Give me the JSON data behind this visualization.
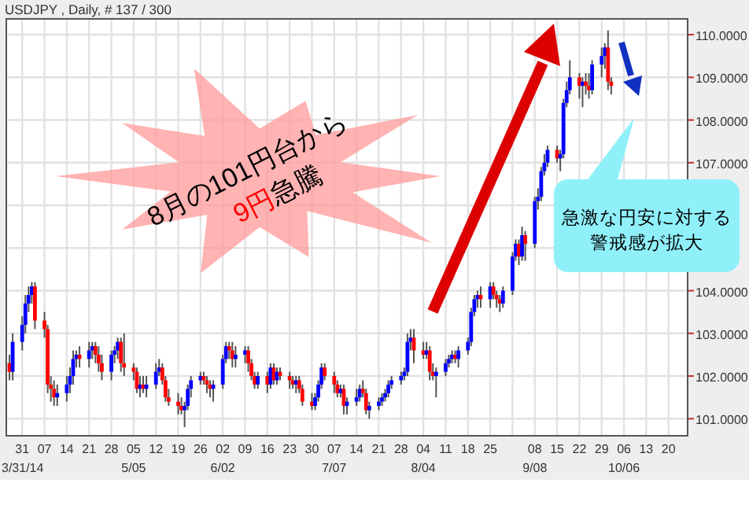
{
  "chart_data": {
    "type": "candlestick",
    "title": "USDJPY , Daily, # 137 / 300",
    "annotations": [
      "8月の101円台から",
      "9円",
      "急騰",
      "急激な円安に対する",
      "警戒感が拡大"
    ],
    "xlim": [
      "--03-26",
      "--10-26"
    ],
    "ylim": [
      100.6,
      110.37
    ],
    "yticks": [
      {
        "value": 101,
        "label": "101.0000"
      },
      {
        "value": 102,
        "label": "102.0000"
      },
      {
        "value": 103,
        "label": "103.0000"
      },
      {
        "value": 104,
        "label": "104.0000"
      },
      {
        "value": 105,
        "label": null
      },
      {
        "value": 106,
        "label": null
      },
      {
        "value": 107,
        "label": "107.0000"
      },
      {
        "value": 108,
        "label": "108.0000"
      },
      {
        "value": 109,
        "label": "109.0000"
      },
      {
        "value": 110,
        "label": "110.0000"
      }
    ],
    "xticks": [
      {
        "value": "--03-31",
        "label": "31\n3/31/14"
      },
      {
        "value": "--04-07",
        "label": "07"
      },
      {
        "value": "--04-14",
        "label": "14"
      },
      {
        "value": "--04-21",
        "label": "21"
      },
      {
        "value": "--04-28",
        "label": "28"
      },
      {
        "value": "--05-05",
        "label": "05\n5/05"
      },
      {
        "value": "--05-12",
        "label": "12"
      },
      {
        "value": "--05-19",
        "label": "19"
      },
      {
        "value": "--05-26",
        "label": "26"
      },
      {
        "value": "--06-02",
        "label": "02\n6/02"
      },
      {
        "value": "--06-09",
        "label": "09"
      },
      {
        "value": "--06-16",
        "label": "16"
      },
      {
        "value": "--06-23",
        "label": "23"
      },
      {
        "value": "--06-30",
        "label": "30"
      },
      {
        "value": "--07-07",
        "label": "07\n7/07"
      },
      {
        "value": "--07-14",
        "label": "14"
      },
      {
        "value": "--07-21",
        "label": "21"
      },
      {
        "value": "--07-28",
        "label": "28"
      },
      {
        "value": "--08-04",
        "label": "04\n8/04"
      },
      {
        "value": "--08-11",
        "label": "11"
      },
      {
        "value": "--08-18",
        "label": "18"
      },
      {
        "value": "--08-25",
        "label": "25"
      },
      {
        "value": "--09-01",
        "label": null
      },
      {
        "value": "--09-08",
        "label": "08\n9/08"
      },
      {
        "value": "--09-15",
        "label": "15"
      },
      {
        "value": "--09-22",
        "label": "22"
      },
      {
        "value": "--09-29",
        "label": "29"
      },
      {
        "value": "--10-06",
        "label": "06\n10/06"
      },
      {
        "value": "--10-13",
        "label": "13"
      },
      {
        "value": "--10-20",
        "label": "20"
      }
    ],
    "grid": true,
    "x": [
      "--03-27",
      "--03-28",
      "--03-31",
      "--04-01",
      "--04-02",
      "--04-03",
      "--04-04",
      "--04-07",
      "--04-08",
      "--04-09",
      "--04-10",
      "--04-11",
      "--04-14",
      "--04-15",
      "--04-16",
      "--04-17",
      "--04-18",
      "--04-21",
      "--04-22",
      "--04-23",
      "--04-24",
      "--04-25",
      "--04-28",
      "--04-29",
      "--04-30",
      "--05-01",
      "--05-02",
      "--05-05",
      "--05-06",
      "--05-07",
      "--05-08",
      "--05-09",
      "--05-12",
      "--05-13",
      "--05-14",
      "--05-15",
      "--05-16",
      "--05-19",
      "--05-20",
      "--05-21",
      "--05-22",
      "--05-23",
      "--05-26",
      "--05-27",
      "--05-28",
      "--05-29",
      "--05-30",
      "--06-02",
      "--06-03",
      "--06-04",
      "--06-05",
      "--06-06",
      "--06-09",
      "--06-10",
      "--06-11",
      "--06-12",
      "--06-13",
      "--06-16",
      "--06-17",
      "--06-18",
      "--06-19",
      "--06-20",
      "--06-23",
      "--06-24",
      "--06-25",
      "--06-26",
      "--06-27",
      "--06-30",
      "--07-01",
      "--07-02",
      "--07-03",
      "--07-04",
      "--07-07",
      "--07-08",
      "--07-09",
      "--07-10",
      "--07-11",
      "--07-14",
      "--07-15",
      "--07-16",
      "--07-17",
      "--07-18",
      "--07-21",
      "--07-22",
      "--07-23",
      "--07-24",
      "--07-25",
      "--07-28",
      "--07-29",
      "--07-30",
      "--07-31",
      "--08-01",
      "--08-04",
      "--08-05",
      "--08-06",
      "--08-07",
      "--08-08",
      "--08-11",
      "--08-12",
      "--08-13",
      "--08-14",
      "--08-15",
      "--08-18",
      "--08-19",
      "--08-20",
      "--08-21",
      "--08-22",
      "--08-25",
      "--08-26",
      "--08-27",
      "--08-28",
      "--08-29",
      "--09-01",
      "--09-02",
      "--09-03",
      "--09-04",
      "--09-05",
      "--09-08",
      "--09-09",
      "--09-10",
      "--09-11",
      "--09-12",
      "--09-15",
      "--09-16",
      "--09-17",
      "--09-18",
      "--09-19",
      "--09-22",
      "--09-23",
      "--09-24",
      "--09-25",
      "--09-26",
      "--09-29",
      "--09-30",
      "--10-01",
      "--10-02"
    ],
    "ohlc": [
      [
        102.3,
        102.5,
        101.9,
        102.1
      ],
      [
        102.1,
        103.0,
        101.9,
        102.8
      ],
      [
        102.8,
        103.4,
        102.6,
        103.2
      ],
      [
        103.2,
        103.9,
        103.0,
        103.7
      ],
      [
        103.7,
        104.1,
        103.5,
        103.9
      ],
      [
        103.9,
        104.2,
        103.7,
        104.1
      ],
      [
        104.1,
        104.2,
        103.1,
        103.3
      ],
      [
        103.3,
        103.5,
        102.9,
        103.1
      ],
      [
        103.1,
        103.2,
        101.6,
        101.8
      ],
      [
        101.8,
        102.0,
        101.4,
        101.7
      ],
      [
        101.7,
        101.9,
        101.3,
        101.5
      ],
      [
        101.5,
        101.8,
        101.3,
        101.6
      ],
      [
        101.6,
        102.0,
        101.4,
        101.8
      ],
      [
        101.8,
        102.2,
        101.6,
        102.0
      ],
      [
        102.0,
        102.6,
        101.8,
        102.4
      ],
      [
        102.4,
        102.6,
        102.2,
        102.5
      ],
      [
        102.5,
        102.7,
        102.2,
        102.4
      ],
      [
        102.4,
        102.8,
        102.2,
        102.6
      ],
      [
        102.6,
        102.8,
        102.4,
        102.7
      ],
      [
        102.7,
        102.8,
        102.3,
        102.5
      ],
      [
        102.5,
        102.7,
        102.1,
        102.3
      ],
      [
        102.3,
        102.5,
        101.9,
        102.1
      ],
      [
        102.1,
        102.6,
        101.9,
        102.5
      ],
      [
        102.5,
        102.7,
        102.3,
        102.6
      ],
      [
        102.6,
        102.9,
        102.4,
        102.8
      ],
      [
        102.8,
        102.9,
        102.1,
        102.3
      ],
      [
        102.3,
        103.0,
        102.0,
        102.2
      ],
      [
        102.2,
        102.3,
        101.9,
        102.1
      ],
      [
        102.1,
        102.2,
        101.6,
        101.7
      ],
      [
        101.7,
        102.0,
        101.5,
        101.8
      ],
      [
        101.8,
        102.0,
        101.6,
        101.7
      ],
      [
        101.7,
        102.0,
        101.5,
        101.8
      ],
      [
        101.8,
        102.3,
        101.7,
        102.1
      ],
      [
        102.1,
        102.4,
        102.0,
        102.2
      ],
      [
        102.2,
        102.3,
        101.8,
        101.9
      ],
      [
        101.9,
        102.0,
        101.4,
        101.5
      ],
      [
        101.5,
        101.7,
        101.3,
        101.4
      ],
      [
        101.4,
        101.6,
        101.1,
        101.3
      ],
      [
        101.3,
        101.5,
        101.1,
        101.2
      ],
      [
        101.2,
        101.4,
        100.8,
        101.3
      ],
      [
        101.3,
        101.8,
        101.2,
        101.7
      ],
      [
        101.7,
        102.0,
        101.5,
        101.9
      ],
      [
        101.9,
        102.1,
        101.8,
        102.0
      ],
      [
        102.0,
        102.1,
        101.8,
        101.9
      ],
      [
        101.9,
        102.0,
        101.6,
        101.8
      ],
      [
        101.8,
        101.9,
        101.5,
        101.7
      ],
      [
        101.7,
        101.9,
        101.4,
        101.8
      ],
      [
        101.8,
        102.5,
        101.7,
        102.4
      ],
      [
        102.4,
        102.8,
        102.3,
        102.7
      ],
      [
        102.7,
        102.8,
        102.4,
        102.6
      ],
      [
        102.6,
        102.8,
        102.2,
        102.4
      ],
      [
        102.4,
        102.7,
        102.2,
        102.5
      ],
      [
        102.5,
        102.7,
        102.3,
        102.6
      ],
      [
        102.6,
        102.7,
        102.1,
        102.3
      ],
      [
        102.3,
        102.4,
        101.9,
        102.0
      ],
      [
        102.0,
        102.1,
        101.7,
        101.8
      ],
      [
        101.8,
        102.1,
        101.7,
        102.0
      ],
      [
        102.0,
        102.1,
        101.6,
        101.8
      ],
      [
        101.8,
        102.3,
        101.7,
        102.2
      ],
      [
        102.2,
        102.3,
        101.8,
        101.9
      ],
      [
        101.9,
        102.2,
        101.8,
        102.1
      ],
      [
        102.1,
        102.2,
        101.9,
        102.0
      ],
      [
        102.0,
        102.1,
        101.7,
        101.9
      ],
      [
        101.9,
        102.0,
        101.7,
        101.8
      ],
      [
        101.8,
        102.0,
        101.6,
        101.9
      ],
      [
        101.9,
        102.0,
        101.6,
        101.7
      ],
      [
        101.7,
        101.8,
        101.3,
        101.4
      ],
      [
        101.4,
        101.6,
        101.2,
        101.3
      ],
      [
        101.3,
        101.6,
        101.2,
        101.5
      ],
      [
        101.5,
        101.9,
        101.4,
        101.8
      ],
      [
        101.8,
        102.3,
        101.7,
        102.2
      ],
      [
        102.2,
        102.3,
        101.9,
        102.0
      ],
      [
        102.0,
        102.1,
        101.6,
        101.8
      ],
      [
        101.8,
        101.9,
        101.5,
        101.6
      ],
      [
        101.6,
        101.8,
        101.5,
        101.7
      ],
      [
        101.7,
        101.8,
        101.1,
        101.3
      ],
      [
        101.3,
        101.5,
        101.1,
        101.4
      ],
      [
        101.4,
        101.7,
        101.3,
        101.5
      ],
      [
        101.5,
        101.8,
        101.4,
        101.7
      ],
      [
        101.7,
        101.9,
        101.5,
        101.6
      ],
      [
        101.6,
        101.7,
        101.1,
        101.2
      ],
      [
        101.2,
        101.4,
        101.0,
        101.3
      ],
      [
        101.3,
        101.5,
        101.2,
        101.4
      ],
      [
        101.4,
        101.6,
        101.3,
        101.5
      ],
      [
        101.5,
        101.7,
        101.4,
        101.6
      ],
      [
        101.6,
        101.9,
        101.5,
        101.8
      ],
      [
        101.8,
        102.0,
        101.7,
        101.9
      ],
      [
        101.9,
        102.1,
        101.8,
        102.0
      ],
      [
        102.0,
        102.2,
        101.9,
        102.1
      ],
      [
        102.1,
        103.0,
        102.0,
        102.8
      ],
      [
        102.8,
        103.1,
        102.6,
        102.9
      ],
      [
        102.9,
        103.1,
        102.3,
        102.6
      ],
      [
        102.6,
        102.8,
        102.4,
        102.5
      ],
      [
        102.5,
        102.8,
        102.4,
        102.6
      ],
      [
        102.6,
        102.7,
        101.9,
        102.1
      ],
      [
        102.1,
        102.3,
        101.9,
        102.0
      ],
      [
        102.0,
        102.2,
        101.5,
        102.1
      ],
      [
        102.1,
        102.4,
        102.0,
        102.3
      ],
      [
        102.3,
        102.5,
        102.2,
        102.4
      ],
      [
        102.4,
        102.6,
        102.3,
        102.5
      ],
      [
        102.5,
        102.6,
        102.3,
        102.4
      ],
      [
        102.4,
        102.7,
        102.2,
        102.6
      ],
      [
        102.6,
        102.9,
        102.5,
        102.8
      ],
      [
        102.8,
        103.6,
        102.7,
        103.5
      ],
      [
        103.5,
        103.9,
        103.4,
        103.8
      ],
      [
        103.8,
        104.0,
        103.6,
        103.9
      ],
      [
        103.9,
        104.1,
        103.6,
        103.8
      ],
      [
        103.8,
        104.2,
        103.6,
        104.1
      ],
      [
        104.1,
        104.2,
        103.8,
        103.9
      ],
      [
        103.9,
        104.0,
        103.6,
        103.8
      ],
      [
        103.8,
        103.9,
        103.5,
        103.7
      ],
      [
        103.7,
        104.1,
        103.6,
        104.0
      ],
      [
        104.0,
        104.9,
        103.9,
        104.8
      ],
      [
        104.8,
        105.2,
        104.7,
        105.1
      ],
      [
        105.1,
        105.2,
        104.6,
        104.8
      ],
      [
        104.8,
        105.5,
        104.7,
        105.3
      ],
      [
        105.3,
        105.4,
        104.7,
        105.1
      ],
      [
        105.1,
        106.2,
        105.0,
        106.1
      ],
      [
        106.1,
        106.4,
        105.9,
        106.2
      ],
      [
        106.2,
        106.9,
        106.1,
        106.8
      ],
      [
        106.8,
        107.2,
        106.7,
        107.0
      ],
      [
        107.0,
        107.4,
        106.9,
        107.3
      ],
      [
        107.3,
        107.4,
        107.0,
        107.1
      ],
      [
        107.1,
        107.3,
        106.8,
        107.2
      ],
      [
        107.2,
        108.5,
        107.1,
        108.4
      ],
      [
        108.4,
        108.9,
        108.3,
        108.7
      ],
      [
        108.7,
        109.4,
        108.6,
        109.0
      ],
      [
        109.0,
        109.1,
        108.5,
        108.8
      ],
      [
        108.8,
        109.0,
        108.3,
        108.9
      ],
      [
        108.9,
        109.1,
        108.6,
        108.8
      ],
      [
        108.8,
        109.1,
        108.5,
        108.7
      ],
      [
        108.7,
        109.4,
        108.6,
        109.3
      ],
      [
        109.3,
        109.7,
        109.0,
        109.5
      ],
      [
        109.5,
        109.8,
        109.2,
        109.7
      ],
      [
        109.7,
        110.1,
        108.7,
        108.9
      ],
      [
        108.9,
        109.0,
        108.6,
        108.8
      ]
    ]
  }
}
